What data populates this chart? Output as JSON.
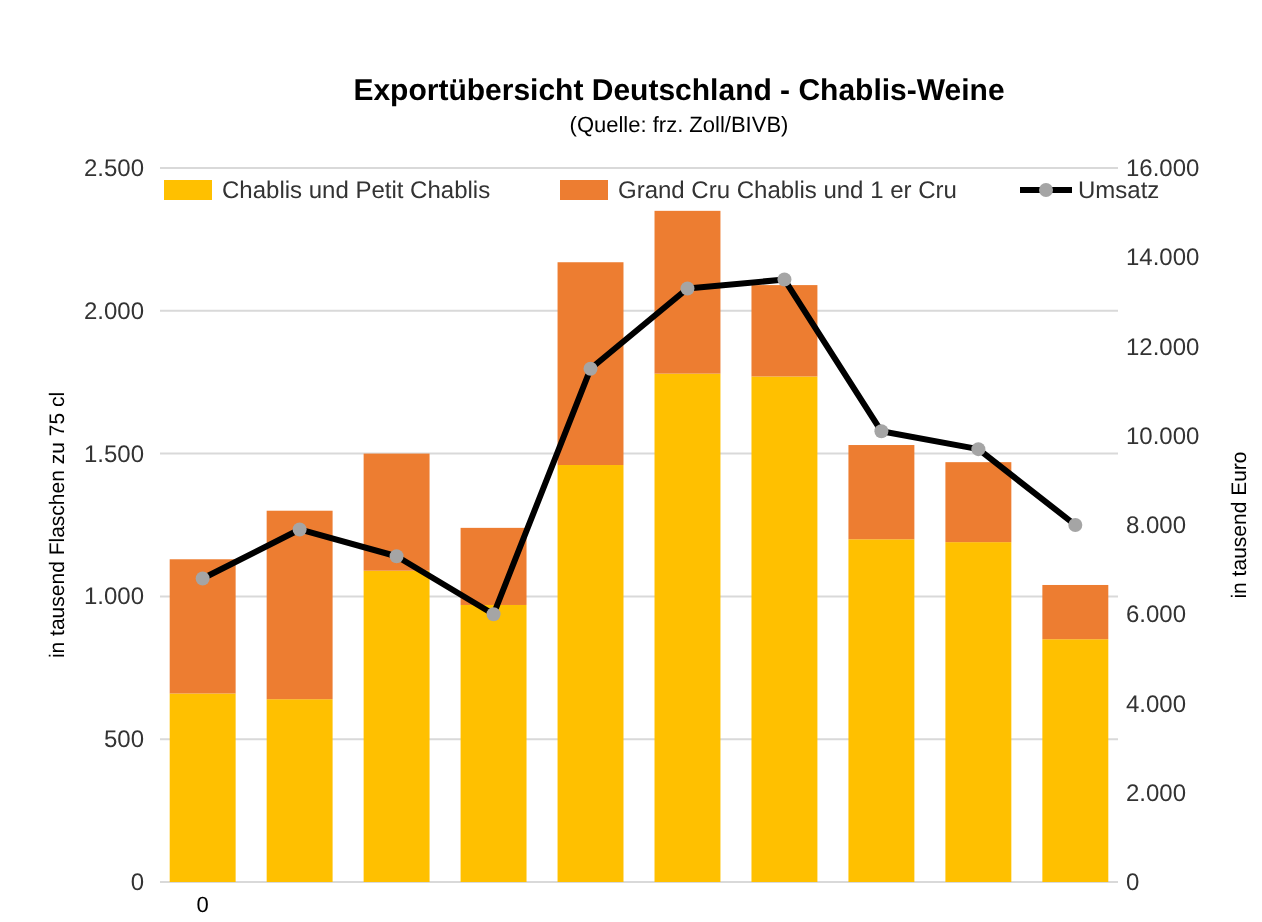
{
  "chart_data": {
    "type": "bar",
    "title": "Exportübersicht Deutschland - Chablis-Weine",
    "subtitle": "(Quelle: frz. Zoll/BIVB)",
    "ylabel": "in tausend Flaschen zu 75 cl",
    "y2label": "in tausend Euro",
    "categories": [
      "0",
      null,
      null,
      null,
      null,
      null,
      null,
      null,
      null,
      null
    ],
    "stacked": true,
    "series": [
      {
        "name": "Chablis und Petit Chablis",
        "color": "#ffc000",
        "values": [
          660,
          640,
          1090,
          970,
          1460,
          1780,
          1770,
          1200,
          1190,
          850
        ]
      },
      {
        "name": "Grand Cru Chablis und 1 er Cru",
        "color": "#ed7d31",
        "values": [
          470,
          660,
          410,
          270,
          710,
          570,
          320,
          330,
          280,
          190
        ]
      },
      {
        "name": "Umsatz",
        "type": "line",
        "axis": "y2",
        "color": "#000000",
        "marker": "circle",
        "values": [
          6800,
          7900,
          7300,
          6000,
          11500,
          13300,
          13500,
          10100,
          9700,
          8000
        ]
      }
    ],
    "ylim": [
      0,
      2500
    ],
    "yticks": [
      {
        "value": 0,
        "label": "0"
      },
      {
        "value": 500,
        "label": "500"
      },
      {
        "value": 1000,
        "label": "1.000"
      },
      {
        "value": 1500,
        "label": "1.500"
      },
      {
        "value": 2000,
        "label": "2.000"
      },
      {
        "value": 2500,
        "label": "2.500"
      }
    ],
    "y2lim": [
      0,
      16000
    ],
    "y2ticks": [
      {
        "value": 0,
        "label": "0"
      },
      {
        "value": 2000,
        "label": "2.000"
      },
      {
        "value": 4000,
        "label": "4.000"
      },
      {
        "value": 6000,
        "label": "6.000"
      },
      {
        "value": 8000,
        "label": "8.000"
      },
      {
        "value": 10000,
        "label": "10.000"
      },
      {
        "value": 12000,
        "label": "12.000"
      },
      {
        "value": 14000,
        "label": "14.000"
      },
      {
        "value": 16000,
        "label": "16.000"
      }
    ],
    "grid": "y",
    "legend": "top"
  }
}
